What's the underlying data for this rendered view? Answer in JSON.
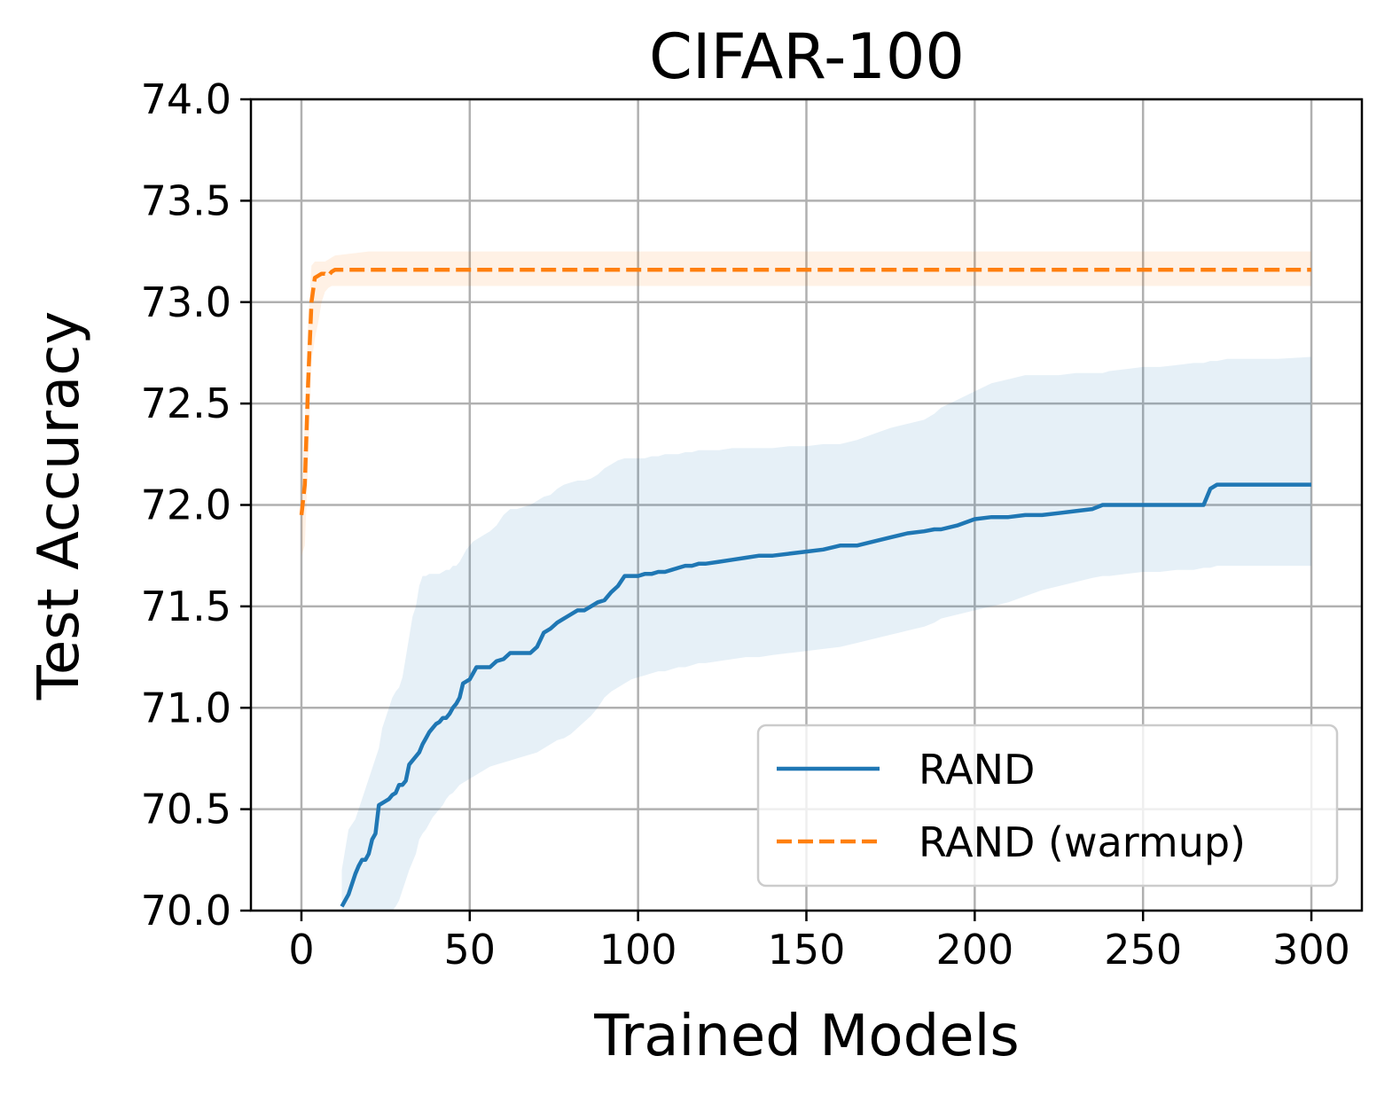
{
  "chart_data": {
    "type": "line",
    "title": "CIFAR-100",
    "xlabel": "Trained Models",
    "ylabel": "Test Accuracy",
    "xlim": [
      -15,
      315
    ],
    "ylim": [
      70.0,
      74.0
    ],
    "xticks": [
      0,
      50,
      100,
      150,
      200,
      250,
      300
    ],
    "xtick_labels": [
      "0",
      "50",
      "100",
      "150",
      "200",
      "250",
      "300"
    ],
    "yticks": [
      70.0,
      70.5,
      71.0,
      71.5,
      72.0,
      72.5,
      73.0,
      73.5,
      74.0
    ],
    "ytick_labels": [
      "70.0",
      "70.5",
      "71.0",
      "71.5",
      "72.0",
      "72.5",
      "73.0",
      "73.5",
      "74.0"
    ],
    "grid": true,
    "legend_position": "lower-right",
    "series": [
      {
        "name": "RAND",
        "color": "#1f77b4",
        "linestyle": "solid",
        "band_color": "#1f77b4",
        "x": [
          12,
          14,
          16,
          17,
          18,
          19,
          20,
          21,
          22,
          23,
          24,
          25,
          26,
          27,
          28,
          29,
          30,
          31,
          32,
          33,
          34,
          35,
          36,
          37,
          38,
          39,
          40,
          41,
          42,
          43,
          44,
          45,
          46,
          47,
          48,
          49,
          50,
          51,
          52,
          53,
          54,
          55,
          56,
          58,
          60,
          62,
          64,
          66,
          68,
          70,
          72,
          74,
          76,
          78,
          80,
          82,
          84,
          86,
          88,
          90,
          92,
          94,
          96,
          98,
          100,
          102,
          104,
          106,
          108,
          110,
          112,
          114,
          116,
          118,
          120,
          124,
          128,
          132,
          136,
          140,
          145,
          150,
          155,
          160,
          165,
          170,
          175,
          180,
          185,
          188,
          190,
          195,
          200,
          205,
          210,
          215,
          220,
          225,
          230,
          235,
          238,
          240,
          245,
          250,
          255,
          260,
          265,
          268,
          270,
          272,
          275,
          280,
          290,
          300
        ],
        "y": [
          70.02,
          70.08,
          70.18,
          70.22,
          70.25,
          70.25,
          70.28,
          70.35,
          70.38,
          70.52,
          70.53,
          70.54,
          70.55,
          70.57,
          70.58,
          70.62,
          70.62,
          70.64,
          70.72,
          70.74,
          70.76,
          70.78,
          70.82,
          70.85,
          70.88,
          70.9,
          70.92,
          70.93,
          70.95,
          70.95,
          70.97,
          71.0,
          71.02,
          71.05,
          71.12,
          71.13,
          71.14,
          71.17,
          71.2,
          71.2,
          71.2,
          71.2,
          71.2,
          71.23,
          71.24,
          71.27,
          71.27,
          71.27,
          71.27,
          71.3,
          71.37,
          71.39,
          71.42,
          71.44,
          71.46,
          71.48,
          71.48,
          71.5,
          71.52,
          71.53,
          71.57,
          71.6,
          71.65,
          71.65,
          71.65,
          71.66,
          71.66,
          71.67,
          71.67,
          71.68,
          71.69,
          71.7,
          71.7,
          71.71,
          71.71,
          71.72,
          71.73,
          71.74,
          71.75,
          71.75,
          71.76,
          71.77,
          71.78,
          71.8,
          71.8,
          71.82,
          71.84,
          71.86,
          71.87,
          71.88,
          71.88,
          71.9,
          71.93,
          71.94,
          71.94,
          71.95,
          71.95,
          71.96,
          71.97,
          71.98,
          72.0,
          72.0,
          72.0,
          72.0,
          72.0,
          72.0,
          72.0,
          72.0,
          72.08,
          72.1,
          72.1,
          72.1,
          72.1,
          72.1
        ],
        "band_upper": [
          70.2,
          70.4,
          70.45,
          70.5,
          70.55,
          70.6,
          70.65,
          70.7,
          70.75,
          70.8,
          70.9,
          70.95,
          71.0,
          71.05,
          71.08,
          71.1,
          71.15,
          71.25,
          71.35,
          71.45,
          71.5,
          71.6,
          71.65,
          71.65,
          71.66,
          71.66,
          71.66,
          71.66,
          71.67,
          71.68,
          71.68,
          71.7,
          71.7,
          71.72,
          71.75,
          71.78,
          71.8,
          71.82,
          71.83,
          71.84,
          71.85,
          71.86,
          71.87,
          71.9,
          71.95,
          71.98,
          71.98,
          71.99,
          72.0,
          72.02,
          72.04,
          72.05,
          72.08,
          72.1,
          72.11,
          72.12,
          72.12,
          72.13,
          72.15,
          72.18,
          72.2,
          72.22,
          72.23,
          72.23,
          72.23,
          72.23,
          72.24,
          72.24,
          72.25,
          72.25,
          72.25,
          72.26,
          72.26,
          72.27,
          72.27,
          72.27,
          72.28,
          72.28,
          72.28,
          72.28,
          72.29,
          72.29,
          72.3,
          72.3,
          72.32,
          72.35,
          72.38,
          72.4,
          72.42,
          72.45,
          72.48,
          72.52,
          72.56,
          72.6,
          72.62,
          72.64,
          72.64,
          72.64,
          72.65,
          72.65,
          72.65,
          72.66,
          72.67,
          72.68,
          72.68,
          72.69,
          72.7,
          72.7,
          72.71,
          72.71,
          72.72,
          72.72,
          72.72,
          72.73
        ],
        "band_lower": [
          70.0,
          70.0,
          70.0,
          70.0,
          70.0,
          70.0,
          70.0,
          70.0,
          70.0,
          70.0,
          70.0,
          70.0,
          70.0,
          70.0,
          70.02,
          70.05,
          70.1,
          70.15,
          70.2,
          70.24,
          70.28,
          70.35,
          70.38,
          70.4,
          70.43,
          70.46,
          70.48,
          70.5,
          70.52,
          70.55,
          70.57,
          70.58,
          70.6,
          70.62,
          70.63,
          70.64,
          70.65,
          70.66,
          70.67,
          70.68,
          70.69,
          70.7,
          70.71,
          70.72,
          70.73,
          70.74,
          70.75,
          70.76,
          70.77,
          70.78,
          70.8,
          70.82,
          70.84,
          70.85,
          70.87,
          70.9,
          70.93,
          70.96,
          71.0,
          71.05,
          71.08,
          71.1,
          71.12,
          71.14,
          71.15,
          71.16,
          71.17,
          71.18,
          71.18,
          71.19,
          71.2,
          71.2,
          71.21,
          71.22,
          71.22,
          71.23,
          71.24,
          71.25,
          71.25,
          71.26,
          71.27,
          71.28,
          71.29,
          71.3,
          71.32,
          71.34,
          71.36,
          71.38,
          71.4,
          71.42,
          71.44,
          71.46,
          71.48,
          71.5,
          71.52,
          71.55,
          71.58,
          71.6,
          71.62,
          71.64,
          71.65,
          71.65,
          71.66,
          71.67,
          71.67,
          71.68,
          71.68,
          71.69,
          71.69,
          71.7,
          71.7,
          71.7,
          71.7,
          71.7
        ]
      },
      {
        "name": "RAND (warmup)",
        "color": "#ff7f0e",
        "linestyle": "dashed",
        "band_color": "#ff7f0e",
        "x": [
          0,
          1,
          2,
          3,
          4,
          5,
          6,
          7,
          8,
          9,
          10,
          15,
          20,
          50,
          100,
          150,
          200,
          250,
          300
        ],
        "y": [
          71.95,
          72.1,
          72.6,
          73.0,
          73.12,
          73.13,
          73.14,
          73.14,
          73.13,
          73.15,
          73.16,
          73.16,
          73.16,
          73.16,
          73.16,
          73.16,
          73.16,
          73.16,
          73.16
        ],
        "band_upper": [
          72.1,
          72.4,
          72.9,
          73.18,
          73.2,
          73.2,
          73.2,
          73.2,
          73.21,
          73.22,
          73.23,
          73.24,
          73.25,
          73.25,
          73.25,
          73.25,
          73.25,
          73.25,
          73.25
        ],
        "band_lower": [
          71.75,
          71.8,
          72.2,
          72.7,
          72.82,
          72.9,
          73.0,
          73.05,
          73.07,
          73.08,
          73.08,
          73.08,
          73.08,
          73.08,
          73.08,
          73.08,
          73.08,
          73.08,
          73.08
        ]
      }
    ]
  }
}
